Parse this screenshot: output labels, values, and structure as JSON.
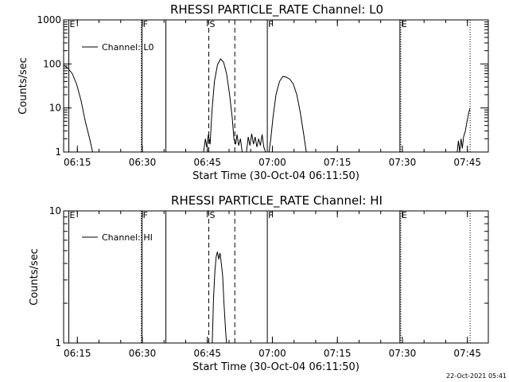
{
  "footer": {
    "timestamp": "22-Oct-2021 05:41"
  },
  "chart_data": [
    {
      "type": "line",
      "title": "RHESSI PARTICLE_RATE Channel: L0",
      "xlabel": "Start Time (30-Oct-04 06:11:50)",
      "ylabel": "Counts/sec",
      "x_unit": "minutes after 06:11:50",
      "xlim": [
        0,
        98
      ],
      "ylim": [
        1,
        1000
      ],
      "yscale": "log",
      "x_ticks": [
        {
          "label": "06:15",
          "x": 3.17
        },
        {
          "label": "06:30",
          "x": 18.17
        },
        {
          "label": "06:45",
          "x": 33.17
        },
        {
          "label": "07:00",
          "x": 48.17
        },
        {
          "label": "07:15",
          "x": 63.17
        },
        {
          "label": "07:30",
          "x": 78.17
        },
        {
          "label": "07:45",
          "x": 93.17
        }
      ],
      "y_ticks": [
        {
          "label": "1",
          "v": 1
        },
        {
          "label": "10",
          "v": 10
        },
        {
          "label": "100",
          "v": 100
        },
        {
          "label": "1000",
          "v": 1000
        }
      ],
      "legend": {
        "label": "Channel: L0",
        "position": "top-left"
      },
      "markers": [
        {
          "x": 1.2,
          "style": "solid",
          "label": "E"
        },
        {
          "x": 17.9,
          "style": "dotted",
          "label": ""
        },
        {
          "x": 18.1,
          "style": "solid",
          "label": "F"
        },
        {
          "x": 23.6,
          "style": "solid",
          "label": ""
        },
        {
          "x": 33.5,
          "style": "dashed",
          "label": "S"
        },
        {
          "x": 39.5,
          "style": "dashed",
          "label": ""
        },
        {
          "x": 47.0,
          "style": "solid",
          "label": "F"
        },
        {
          "x": 77.6,
          "style": "solid",
          "label": ""
        },
        {
          "x": 77.8,
          "style": "dotted",
          "label": "E"
        },
        {
          "x": 93.8,
          "style": "dotted",
          "label": ""
        }
      ],
      "series": [
        {
          "segments": [
            [
              [
                0,
                95
              ],
              [
                1,
                80
              ],
              [
                2,
                60
              ],
              [
                3,
                35
              ],
              [
                4,
                15
              ],
              [
                5,
                5
              ],
              [
                6,
                2
              ],
              [
                6.7,
                1
              ]
            ],
            [
              [
                32.3,
                1
              ],
              [
                32.7,
                2
              ],
              [
                33.0,
                1.3
              ],
              [
                33.4,
                2.5
              ],
              [
                33.8,
                1.5
              ],
              [
                34.2,
                8
              ],
              [
                34.8,
                40
              ],
              [
                35.5,
                95
              ],
              [
                36.2,
                130
              ],
              [
                36.9,
                110
              ],
              [
                37.6,
                60
              ],
              [
                38.3,
                20
              ],
              [
                38.9,
                6
              ],
              [
                39.3,
                2
              ],
              [
                39.7,
                1.5
              ],
              [
                40.0,
                2.5
              ],
              [
                40.4,
                1.4
              ],
              [
                40.8,
                2
              ],
              [
                41.2,
                1
              ]
            ],
            [
              [
                42.2,
                1
              ],
              [
                42.6,
                2.2
              ],
              [
                43.0,
                1.4
              ],
              [
                43.4,
                2.6
              ],
              [
                43.8,
                1.5
              ],
              [
                44.2,
                2.2
              ],
              [
                44.6,
                1.3
              ],
              [
                45.0,
                2
              ],
              [
                45.4,
                1.4
              ],
              [
                45.8,
                2.5
              ],
              [
                46.2,
                1.3
              ],
              [
                46.6,
                1
              ]
            ],
            [
              [
                47.4,
                1
              ],
              [
                47.8,
                2
              ],
              [
                48.3,
                6
              ],
              [
                49.0,
                20
              ],
              [
                49.8,
                40
              ],
              [
                50.6,
                52
              ],
              [
                51.4,
                50
              ],
              [
                52.2,
                45
              ],
              [
                53.0,
                35
              ],
              [
                53.8,
                20
              ],
              [
                54.6,
                8
              ],
              [
                55.4,
                2.5
              ],
              [
                56.0,
                1
              ]
            ],
            [
              [
                90.8,
                1
              ],
              [
                91.1,
                1.8
              ],
              [
                91.4,
                1
              ],
              [
                91.7,
                2
              ],
              [
                92.0,
                1.2
              ],
              [
                92.3,
                2.2
              ],
              [
                92.7,
                3
              ],
              [
                93.1,
                5
              ],
              [
                93.5,
                8
              ],
              [
                93.8,
                10
              ]
            ]
          ]
        }
      ]
    },
    {
      "type": "line",
      "title": "RHESSI PARTICLE_RATE Channel: HI",
      "xlabel": "Start Time (30-Oct-04 06:11:50)",
      "ylabel": "Counts/sec",
      "x_unit": "minutes after 06:11:50",
      "xlim": [
        0,
        98
      ],
      "ylim": [
        1,
        10
      ],
      "yscale": "log",
      "x_ticks": [
        {
          "label": "06:15",
          "x": 3.17
        },
        {
          "label": "06:30",
          "x": 18.17
        },
        {
          "label": "06:45",
          "x": 33.17
        },
        {
          "label": "07:00",
          "x": 48.17
        },
        {
          "label": "07:15",
          "x": 63.17
        },
        {
          "label": "07:30",
          "x": 78.17
        },
        {
          "label": "07:45",
          "x": 93.17
        }
      ],
      "y_ticks": [
        {
          "label": "1",
          "v": 1
        },
        {
          "label": "10",
          "v": 10
        }
      ],
      "legend": {
        "label": "Channel: HI",
        "position": "top-left"
      },
      "markers": [
        {
          "x": 1.2,
          "style": "solid",
          "label": "E"
        },
        {
          "x": 17.9,
          "style": "dotted",
          "label": ""
        },
        {
          "x": 18.1,
          "style": "solid",
          "label": "F"
        },
        {
          "x": 23.6,
          "style": "solid",
          "label": ""
        },
        {
          "x": 33.5,
          "style": "dashed",
          "label": "S"
        },
        {
          "x": 39.5,
          "style": "dashed",
          "label": ""
        },
        {
          "x": 47.0,
          "style": "solid",
          "label": "F"
        },
        {
          "x": 77.6,
          "style": "solid",
          "label": ""
        },
        {
          "x": 77.8,
          "style": "dotted",
          "label": "E"
        },
        {
          "x": 93.8,
          "style": "dotted",
          "label": ""
        }
      ],
      "series": [
        {
          "segments": [
            [
              [
                34.3,
                1
              ],
              [
                34.6,
                2.2
              ],
              [
                34.9,
                3.5
              ],
              [
                35.2,
                4.5
              ],
              [
                35.5,
                4.9
              ],
              [
                35.8,
                4.3
              ],
              [
                36.1,
                4.8
              ],
              [
                36.4,
                4.0
              ],
              [
                36.7,
                3.2
              ],
              [
                37.0,
                2.0
              ],
              [
                37.4,
                1.2
              ],
              [
                37.6,
                1
              ]
            ]
          ]
        }
      ]
    }
  ]
}
